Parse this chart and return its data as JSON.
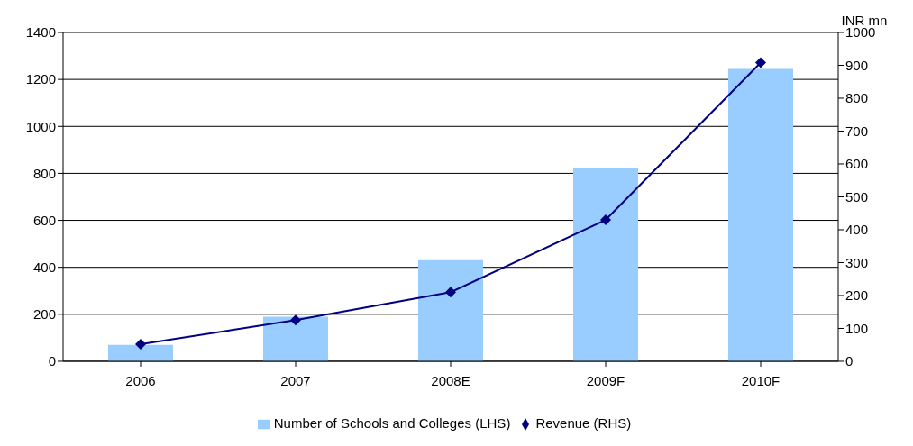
{
  "chart_data": {
    "type": "bar",
    "categories": [
      "2006",
      "2007",
      "2008E",
      "2009F",
      "2010F"
    ],
    "series": [
      {
        "name": "Number of Schools and Colleges (LHS)",
        "color": "#99ccff",
        "values": [
          70,
          190,
          430,
          825,
          1245
        ]
      },
      {
        "name": "Revenue (RHS)",
        "type": "line",
        "axis": "y2",
        "color": "#000080",
        "values": [
          52,
          125,
          210,
          430,
          908
        ]
      }
    ],
    "ylim": [
      0,
      1400
    ],
    "yticks": [
      0,
      200,
      400,
      600,
      800,
      1000,
      1200,
      1400
    ],
    "y2lim": [
      0,
      1000
    ],
    "y2ticks": [
      0,
      100,
      200,
      300,
      400,
      500,
      600,
      700,
      800,
      900,
      1000
    ],
    "y2label": "INR mn",
    "grid": "y",
    "legend": "bottom",
    "marker": "diamond",
    "line_style": "solid"
  }
}
